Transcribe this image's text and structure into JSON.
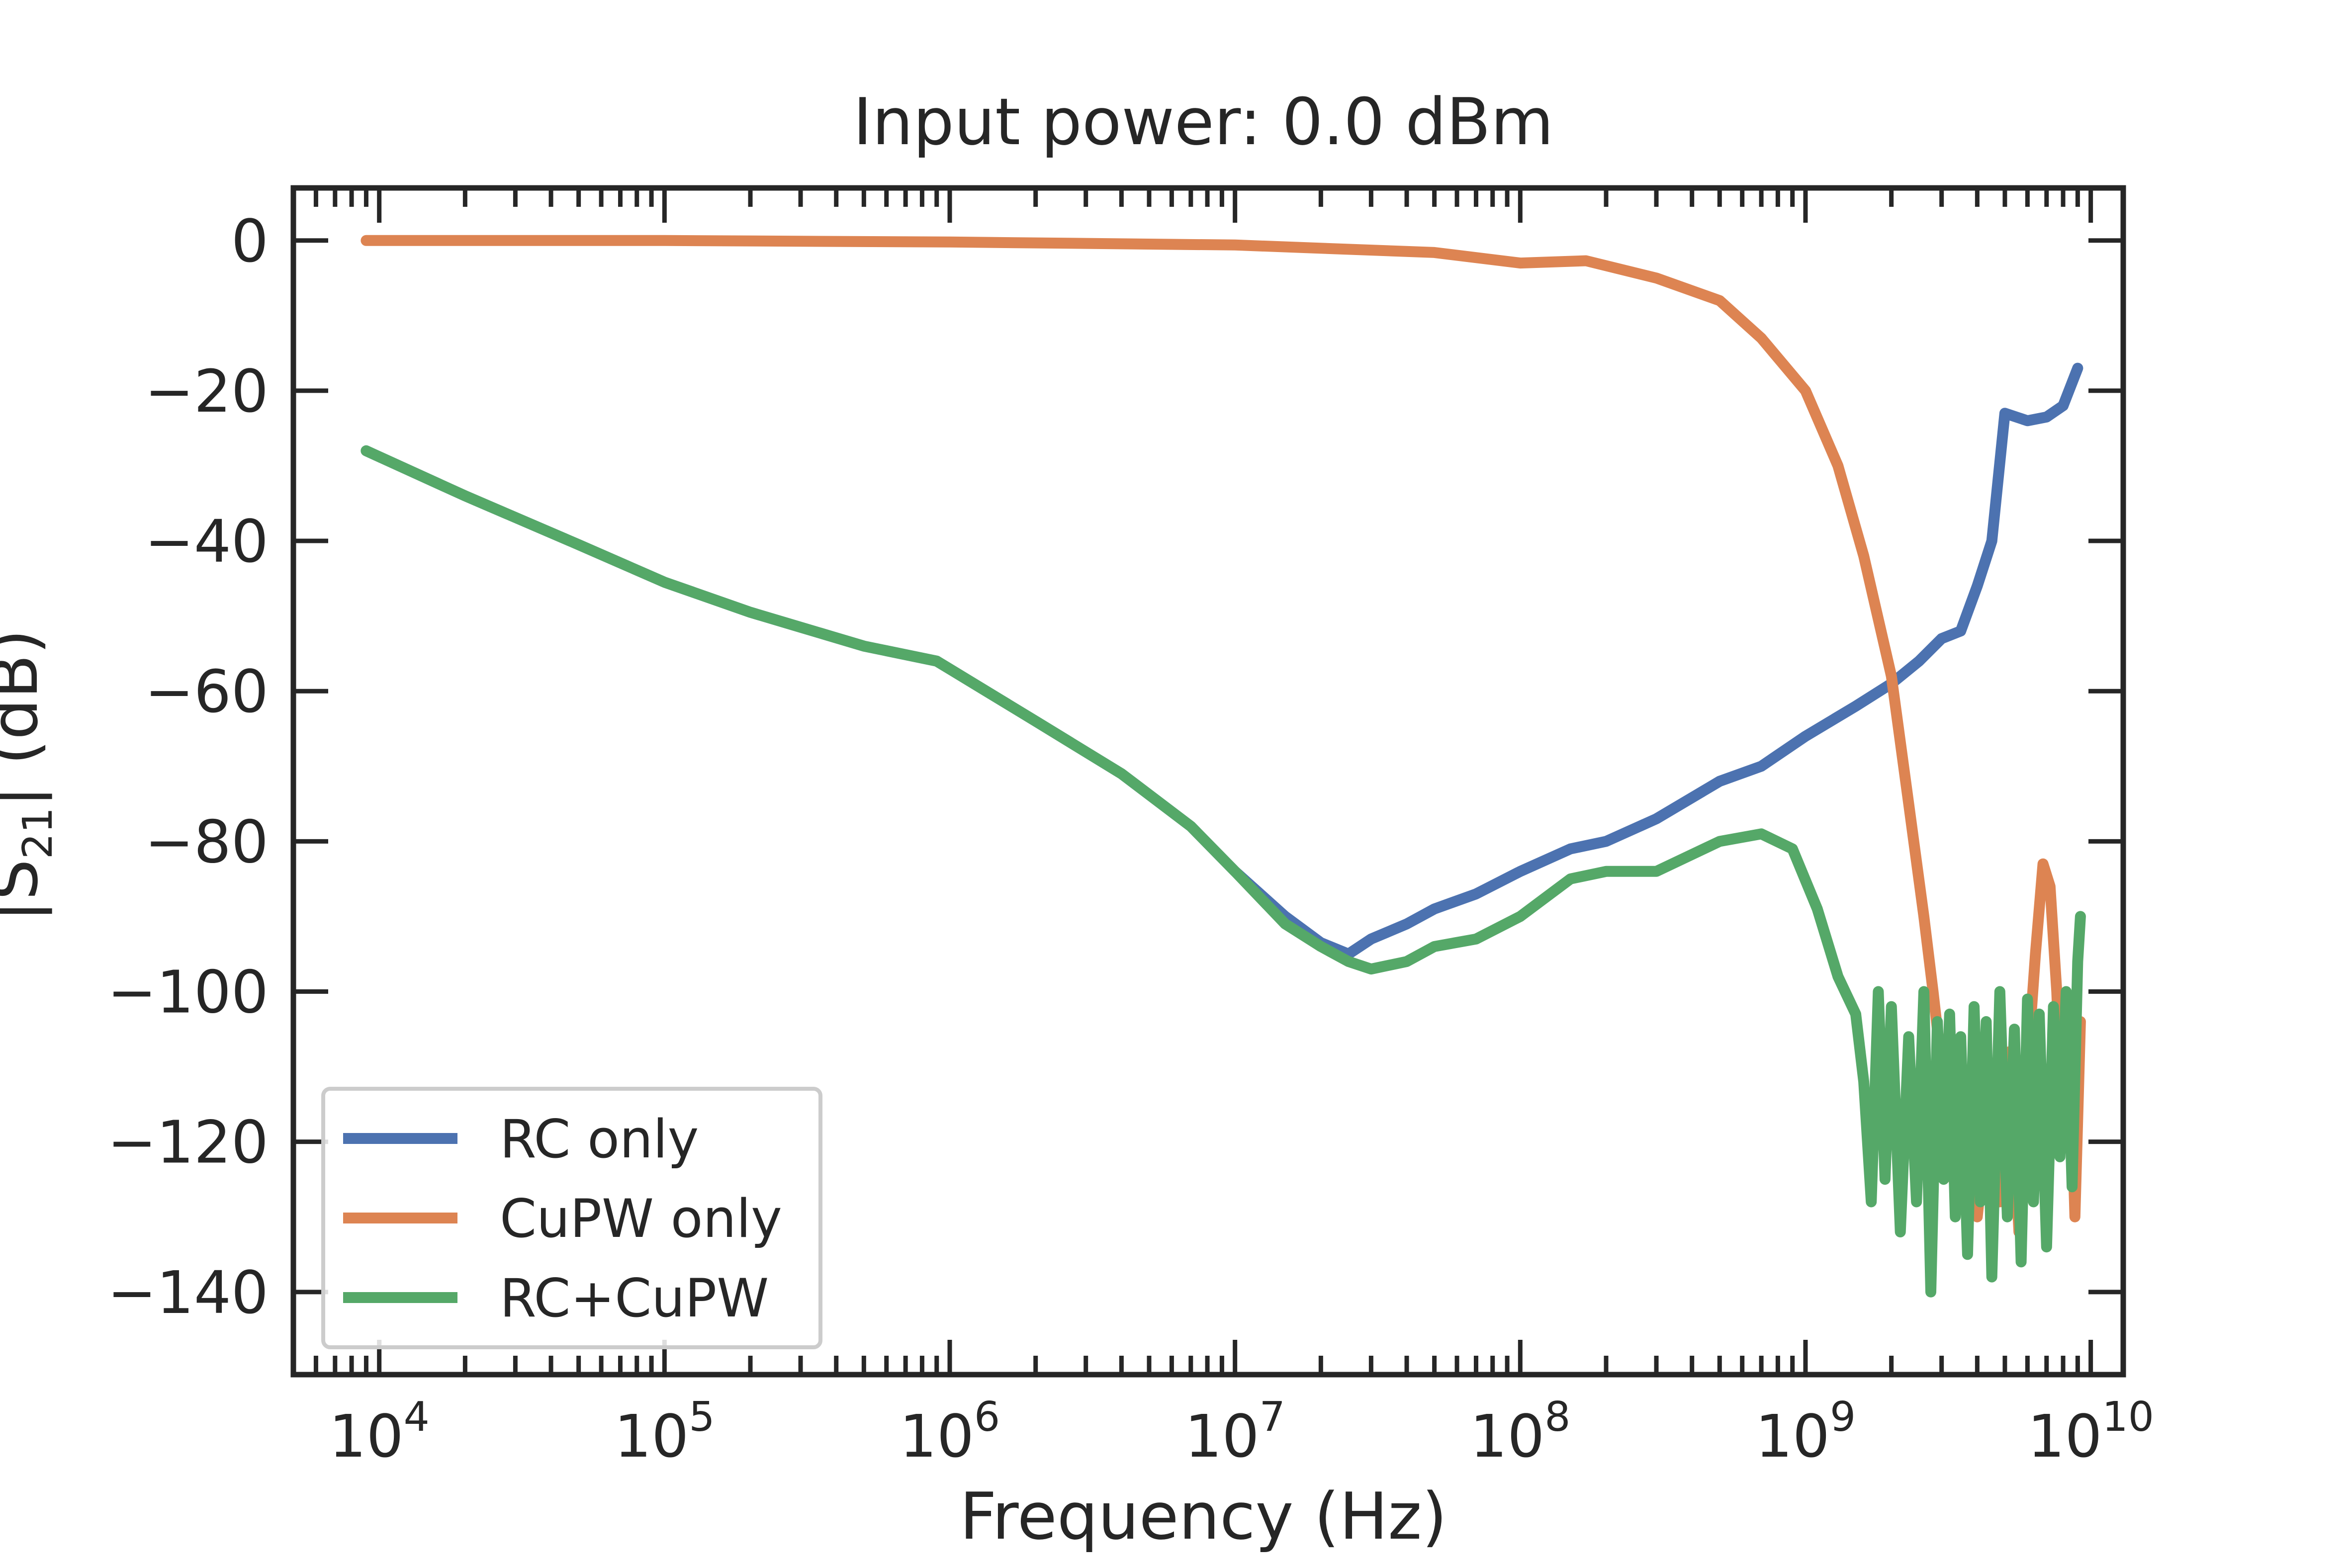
{
  "chart_data": {
    "type": "line",
    "title": "Input power: 0.0 dBm",
    "xlabel": "Frequency (Hz)",
    "ylabel_main": "|S",
    "ylabel_sub": "21",
    "ylabel_tail": "| (dB)",
    "xscale": "log",
    "xlim": [
      5000,
      13000000000
    ],
    "ylim": [
      -151,
      7
    ],
    "x_ticks": [
      {
        "base": "10",
        "exp": "4",
        "value": 10000
      },
      {
        "base": "10",
        "exp": "5",
        "value": 100000
      },
      {
        "base": "10",
        "exp": "6",
        "value": 1000000
      },
      {
        "base": "10",
        "exp": "7",
        "value": 10000000
      },
      {
        "base": "10",
        "exp": "8",
        "value": 100000000
      },
      {
        "base": "10",
        "exp": "9",
        "value": 1000000000
      },
      {
        "base": "10",
        "exp": "10",
        "value": 10000000000
      }
    ],
    "y_ticks": [
      {
        "label": "0",
        "value": 0
      },
      {
        "label": "−20",
        "value": -20
      },
      {
        "label": "−40",
        "value": -40
      },
      {
        "label": "−60",
        "value": -60
      },
      {
        "label": "−80",
        "value": -80
      },
      {
        "label": "−100",
        "value": -100
      },
      {
        "label": "−120",
        "value": -120
      },
      {
        "label": "−140",
        "value": -140
      }
    ],
    "grid": false,
    "legend_position": "lower-left",
    "series": [
      {
        "name": "RC only",
        "color": "#4c72b0",
        "x": [
          9000,
          20000,
          50000,
          100000,
          200000,
          500000,
          900000,
          2000000,
          4000000,
          7000000,
          10000000,
          15000000,
          20000000,
          25000000,
          30000000,
          40000000,
          50000000,
          70000000,
          100000000,
          150000000,
          200000000,
          300000000,
          500000000,
          700000000,
          1000000000,
          1500000000,
          2000000000,
          2500000000,
          3000000000,
          3500000000,
          4000000000,
          4500000000,
          5000000000,
          6000000000,
          7000000000,
          8000000000,
          9000000000
        ],
        "y": [
          -28,
          -34,
          -40.5,
          -45.5,
          -49.5,
          -54,
          -56,
          -64,
          -71,
          -78,
          -84,
          -90,
          -93.5,
          -95,
          -93,
          -91,
          -89,
          -87,
          -84,
          -81,
          -80,
          -77,
          -72,
          -70,
          -66,
          -62,
          -59,
          -56,
          -53,
          -52,
          -46,
          -40,
          -23,
          -24,
          -23.5,
          -22,
          -17
        ]
      },
      {
        "name": "CuPW only",
        "color": "#dd8452",
        "x": [
          9000,
          100000,
          1000000,
          10000000,
          50000000,
          100000000,
          170000000,
          300000000,
          500000000,
          700000000,
          1000000000,
          1300000000,
          1600000000,
          2000000000,
          2300000000,
          2600000000,
          2800000000,
          3000000000,
          3300000000,
          3600000000,
          4000000000,
          4400000000,
          4800000000,
          5200000000,
          5600000000,
          6000000000,
          6400000000,
          6800000000,
          7200000000,
          7600000000,
          8000000000,
          8400000000,
          8800000000,
          9200000000
        ],
        "y": [
          0,
          0,
          -0.2,
          -0.6,
          -1.6,
          -3,
          -2.7,
          -5,
          -8,
          -13,
          -20,
          -30,
          -42,
          -58,
          -75,
          -90,
          -100,
          -110,
          -125,
          -112,
          -130,
          -115,
          -128,
          -108,
          -132,
          -110,
          -95,
          -83,
          -86,
          -100,
          -120,
          -104,
          -130,
          -104
        ]
      },
      {
        "name": "RC+CuPW",
        "color": "#55a868",
        "x": [
          9000,
          20000,
          50000,
          100000,
          200000,
          500000,
          900000,
          2000000,
          4000000,
          7000000,
          10000000,
          15000000,
          20000000,
          25000000,
          30000000,
          40000000,
          50000000,
          70000000,
          100000000,
          150000000,
          200000000,
          300000000,
          500000000,
          700000000,
          900000000,
          1100000000,
          1300000000,
          1500000000,
          1600000000,
          1700000000,
          1800000000,
          1900000000,
          2000000000,
          2150000000,
          2300000000,
          2450000000,
          2600000000,
          2750000000,
          2900000000,
          3050000000,
          3200000000,
          3350000000,
          3500000000,
          3700000000,
          3900000000,
          4100000000,
          4300000000,
          4500000000,
          4800000000,
          5100000000,
          5400000000,
          5700000000,
          6000000000,
          6300000000,
          6600000000,
          7000000000,
          7400000000,
          7800000000,
          8200000000,
          8600000000,
          9000000000,
          9200000000
        ],
        "y": [
          -28,
          -34,
          -40.5,
          -45.5,
          -49.5,
          -54,
          -56,
          -64,
          -71,
          -78,
          -84,
          -91,
          -94,
          -96,
          -97,
          -96,
          -94,
          -93,
          -90,
          -85,
          -84,
          -84,
          -80,
          -79,
          -81,
          -89,
          -98,
          -103,
          -112,
          -128,
          -100,
          -125,
          -102,
          -132,
          -106,
          -128,
          -100,
          -140,
          -104,
          -125,
          -103,
          -130,
          -106,
          -135,
          -102,
          -128,
          -104,
          -138,
          -100,
          -130,
          -105,
          -136,
          -101,
          -128,
          -103,
          -134,
          -102,
          -122,
          -100,
          -126,
          -96,
          -90
        ]
      }
    ]
  }
}
